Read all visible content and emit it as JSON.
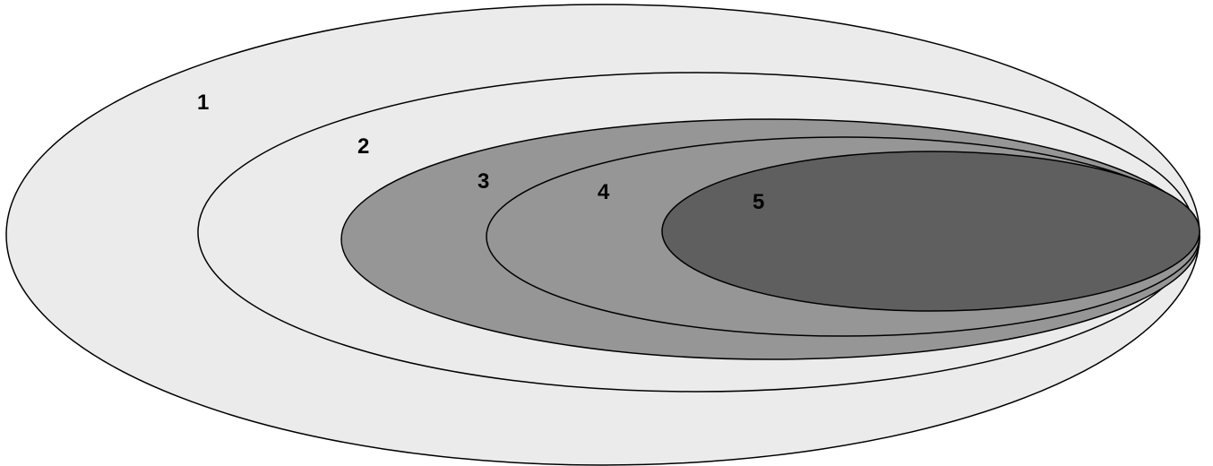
{
  "diagram": {
    "regions": [
      {
        "label": "1",
        "fill": "#ebebeb"
      },
      {
        "label": "2",
        "fill": "#ebebeb"
      },
      {
        "label": "3",
        "fill": "#969696"
      },
      {
        "label": "4",
        "fill": "#969696"
      },
      {
        "label": "5",
        "fill": "#5f5f5f"
      }
    ]
  }
}
